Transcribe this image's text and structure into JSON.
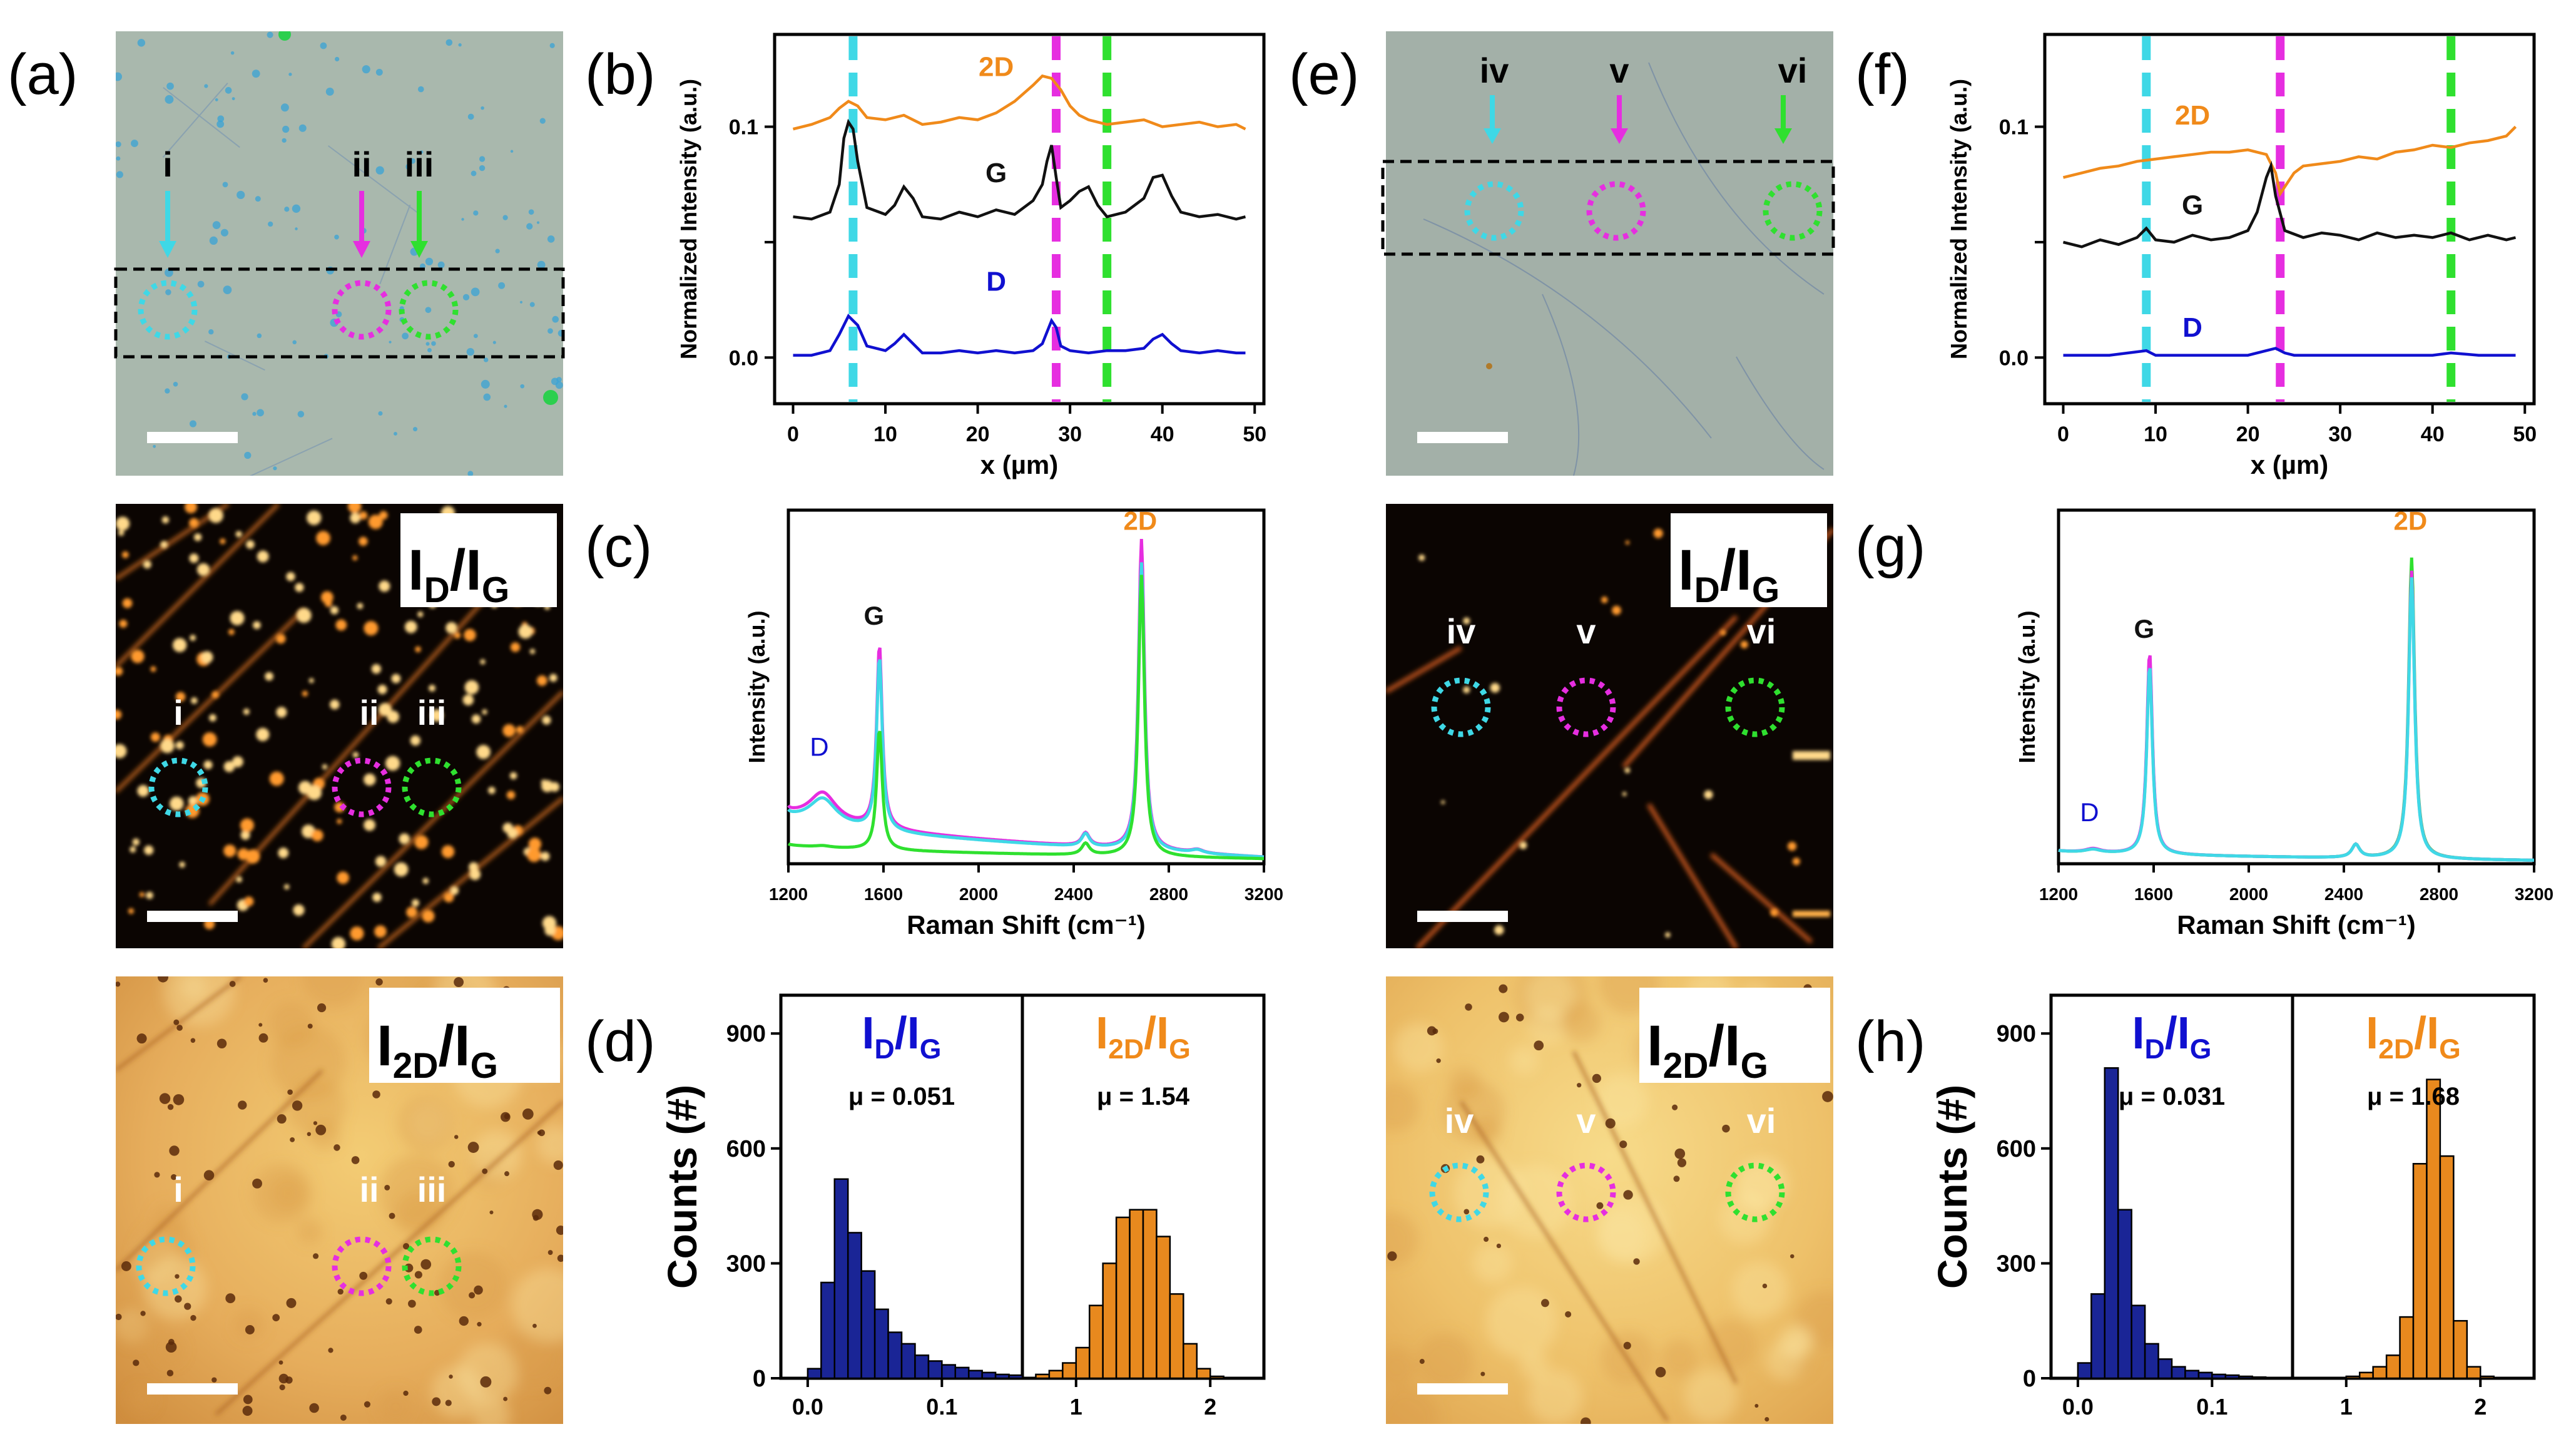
{
  "figure": {
    "panels": {
      "a": {
        "letter": "(a)",
        "points": [
          "i",
          "ii",
          "iii"
        ]
      },
      "e": {
        "letter": "(e)",
        "points": [
          "iv",
          "v",
          "vi"
        ]
      },
      "map_labels": {
        "id_ig": {
          "main": "I",
          "sub": "D",
          "sep": "/I",
          "sub2": "G"
        },
        "i2d_ig": {
          "main": "I",
          "sub": "2D",
          "sep": "/I",
          "sub2": "G"
        }
      }
    },
    "colors": {
      "cyan": "#3fd8e6",
      "magenta": "#e62ee0",
      "green": "#2fe02f",
      "orange": "#f08a1a",
      "black": "#111111",
      "blue": "#1010d0",
      "hist_blue": "#1a2596",
      "hist_orange": "#e8891e"
    }
  },
  "chart_data": [
    {
      "id": "b",
      "letter": "(b)",
      "type": "line",
      "xlabel": "x (µm)",
      "ylabel": "Normalized Intensity (a.u.)",
      "xlim": [
        -2,
        51
      ],
      "ylim": [
        -0.02,
        0.14
      ],
      "xticks": [
        0,
        10,
        20,
        30,
        40,
        50
      ],
      "yticks": [
        0.0,
        0.1
      ],
      "ytick_labels": [
        "0.0",
        "0.1"
      ],
      "vlines": [
        {
          "x": 6.5,
          "color": "cyan"
        },
        {
          "x": 28.5,
          "color": "magenta"
        },
        {
          "x": 34,
          "color": "green"
        }
      ],
      "series": [
        {
          "name": "2D",
          "color": "orange",
          "label_at": [
            22,
            0.122
          ],
          "x": [
            0,
            2,
            4,
            5,
            6,
            7,
            8,
            10,
            12,
            14,
            16,
            18,
            20,
            22,
            24,
            26,
            27,
            28,
            29,
            30,
            31,
            32,
            34,
            36,
            38,
            40,
            42,
            44,
            46,
            48,
            49
          ],
          "y": [
            0.099,
            0.101,
            0.104,
            0.108,
            0.111,
            0.109,
            0.104,
            0.103,
            0.105,
            0.101,
            0.102,
            0.104,
            0.103,
            0.106,
            0.111,
            0.118,
            0.122,
            0.121,
            0.116,
            0.109,
            0.105,
            0.103,
            0.101,
            0.102,
            0.103,
            0.1,
            0.101,
            0.102,
            0.1,
            0.101,
            0.099
          ]
        },
        {
          "name": "G",
          "color": "black",
          "label_at": [
            22,
            0.076
          ],
          "x": [
            0,
            2,
            4,
            5,
            5.5,
            6,
            6.5,
            7,
            8,
            10,
            11,
            12,
            13,
            14,
            16,
            18,
            20,
            22,
            24,
            26,
            27,
            27.5,
            28,
            28.5,
            29,
            30,
            31,
            32,
            33,
            34,
            36,
            38,
            39,
            40,
            41,
            42,
            44,
            46,
            48,
            49
          ],
          "y": [
            0.061,
            0.06,
            0.063,
            0.075,
            0.095,
            0.102,
            0.099,
            0.085,
            0.065,
            0.062,
            0.066,
            0.074,
            0.069,
            0.061,
            0.06,
            0.063,
            0.061,
            0.064,
            0.062,
            0.068,
            0.075,
            0.085,
            0.092,
            0.078,
            0.065,
            0.068,
            0.072,
            0.074,
            0.066,
            0.061,
            0.063,
            0.069,
            0.078,
            0.079,
            0.07,
            0.063,
            0.061,
            0.062,
            0.06,
            0.061
          ]
        },
        {
          "name": "D",
          "color": "blue",
          "label_at": [
            22,
            0.029
          ],
          "x": [
            0,
            2,
            4,
            5,
            6,
            7,
            8,
            10,
            11,
            12,
            13,
            14,
            16,
            18,
            20,
            22,
            24,
            26,
            27,
            28,
            28.5,
            29,
            30,
            32,
            34,
            36,
            38,
            39,
            40,
            41,
            42,
            44,
            46,
            48,
            49
          ],
          "y": [
            0.001,
            0.001,
            0.003,
            0.01,
            0.018,
            0.014,
            0.005,
            0.003,
            0.006,
            0.01,
            0.006,
            0.002,
            0.002,
            0.003,
            0.002,
            0.003,
            0.002,
            0.003,
            0.006,
            0.016,
            0.013,
            0.005,
            0.003,
            0.002,
            0.003,
            0.003,
            0.004,
            0.008,
            0.01,
            0.006,
            0.003,
            0.002,
            0.003,
            0.002,
            0.002
          ]
        }
      ]
    },
    {
      "id": "f",
      "letter": "(f)",
      "type": "line",
      "xlabel": "x (µm)",
      "ylabel": "Normalized Intensity (a.u.)",
      "xlim": [
        -2,
        51
      ],
      "ylim": [
        -0.02,
        0.14
      ],
      "xticks": [
        0,
        10,
        20,
        30,
        40,
        50
      ],
      "yticks": [
        0.0,
        0.1
      ],
      "ytick_labels": [
        "0.0",
        "0.1"
      ],
      "vlines": [
        {
          "x": 9,
          "color": "cyan"
        },
        {
          "x": 23.5,
          "color": "magenta"
        },
        {
          "x": 42,
          "color": "green"
        }
      ],
      "series": [
        {
          "name": "2D",
          "color": "orange",
          "label_at": [
            14,
            0.101
          ],
          "x": [
            0,
            2,
            4,
            6,
            8,
            10,
            12,
            14,
            16,
            18,
            20,
            22,
            23,
            23.5,
            24,
            25,
            26,
            28,
            30,
            32,
            34,
            36,
            38,
            40,
            42,
            44,
            46,
            48,
            49
          ],
          "y": [
            0.078,
            0.08,
            0.082,
            0.083,
            0.085,
            0.086,
            0.087,
            0.088,
            0.089,
            0.089,
            0.09,
            0.088,
            0.08,
            0.071,
            0.074,
            0.08,
            0.083,
            0.084,
            0.085,
            0.087,
            0.086,
            0.089,
            0.09,
            0.092,
            0.091,
            0.093,
            0.094,
            0.096,
            0.1
          ]
        },
        {
          "name": "G",
          "color": "black",
          "label_at": [
            14,
            0.062
          ],
          "x": [
            0,
            2,
            4,
            6,
            8,
            9,
            10,
            12,
            14,
            16,
            18,
            20,
            21,
            22,
            22.5,
            23,
            24,
            26,
            28,
            30,
            32,
            34,
            36,
            38,
            40,
            42,
            44,
            46,
            48,
            49
          ],
          "y": [
            0.05,
            0.048,
            0.051,
            0.049,
            0.052,
            0.056,
            0.051,
            0.05,
            0.053,
            0.051,
            0.052,
            0.055,
            0.063,
            0.078,
            0.083,
            0.07,
            0.055,
            0.052,
            0.054,
            0.053,
            0.051,
            0.054,
            0.052,
            0.053,
            0.052,
            0.054,
            0.051,
            0.053,
            0.051,
            0.052
          ]
        },
        {
          "name": "D",
          "color": "blue",
          "label_at": [
            14,
            0.009
          ],
          "x": [
            0,
            5,
            9,
            10,
            15,
            20,
            23,
            24,
            25,
            30,
            35,
            40,
            42,
            45,
            49
          ],
          "y": [
            0.001,
            0.001,
            0.003,
            0.001,
            0.001,
            0.001,
            0.004,
            0.002,
            0.001,
            0.001,
            0.001,
            0.001,
            0.002,
            0.001,
            0.001
          ]
        }
      ]
    },
    {
      "id": "c",
      "letter": "(c)",
      "type": "line",
      "xlabel": "Raman Shift (cm⁻¹)",
      "ylabel": "Intensity (a.u.)",
      "xlim": [
        1200,
        3200
      ],
      "ylim": [
        0,
        1.08
      ],
      "xticks": [
        1200,
        1600,
        2000,
        2400,
        2800,
        3200
      ],
      "peak_labels": [
        {
          "text": "D",
          "color": "blue",
          "at": [
            1330,
            0.33
          ]
        },
        {
          "text": "G",
          "color": "black",
          "at": [
            1560,
            0.73
          ]
        },
        {
          "text": "2D",
          "color": "orange",
          "at": [
            2680,
            1.02
          ]
        }
      ],
      "spectra": [
        {
          "color": "magenta",
          "base_left": 0.16,
          "base_right": 0.02,
          "peaks": [
            [
              1345,
              0.09,
              70
            ],
            [
              1583,
              0.56,
              14
            ],
            [
              2450,
              0.04,
              20
            ],
            [
              2685,
              0.95,
              15
            ],
            [
              2920,
              0.01,
              30
            ]
          ]
        },
        {
          "color": "cyan",
          "base_left": 0.15,
          "base_right": 0.02,
          "peaks": [
            [
              1345,
              0.08,
              70
            ],
            [
              1583,
              0.53,
              14
            ],
            [
              2450,
              0.04,
              20
            ],
            [
              2685,
              0.88,
              15
            ],
            [
              2920,
              0.01,
              30
            ]
          ]
        },
        {
          "color": "green",
          "base_left": 0.06,
          "base_right": 0.015,
          "peaks": [
            [
              1345,
              0.005,
              40
            ],
            [
              1583,
              0.37,
              14
            ],
            [
              2450,
              0.035,
              20
            ],
            [
              2685,
              0.86,
              15
            ]
          ]
        }
      ]
    },
    {
      "id": "g",
      "letter": "(g)",
      "type": "line",
      "xlabel": "Raman Shift (cm⁻¹)",
      "ylabel": "Intensity (a.u.)",
      "xlim": [
        1200,
        3200
      ],
      "ylim": [
        0,
        1.08
      ],
      "xticks": [
        1200,
        1600,
        2000,
        2400,
        2800,
        3200
      ],
      "peak_labels": [
        {
          "text": "D",
          "color": "blue",
          "at": [
            1330,
            0.13
          ]
        },
        {
          "text": "G",
          "color": "black",
          "at": [
            1560,
            0.69
          ]
        },
        {
          "text": "2D",
          "color": "orange",
          "at": [
            2680,
            1.02
          ]
        }
      ],
      "spectra": [
        {
          "color": "green",
          "base_left": 0.04,
          "base_right": 0.01,
          "peaks": [
            [
              1345,
              0.01,
              40
            ],
            [
              1583,
              0.6,
              14
            ],
            [
              2450,
              0.04,
              20
            ],
            [
              2685,
              0.92,
              15
            ]
          ]
        },
        {
          "color": "magenta",
          "base_left": 0.04,
          "base_right": 0.01,
          "peaks": [
            [
              1345,
              0.012,
              40
            ],
            [
              1583,
              0.62,
              14
            ],
            [
              2450,
              0.04,
              20
            ],
            [
              2685,
              0.88,
              15
            ]
          ]
        },
        {
          "color": "cyan",
          "base_left": 0.04,
          "base_right": 0.01,
          "peaks": [
            [
              1345,
              0.01,
              40
            ],
            [
              1583,
              0.58,
              14
            ],
            [
              2450,
              0.04,
              20
            ],
            [
              2685,
              0.86,
              15
            ]
          ]
        }
      ]
    },
    {
      "id": "d",
      "letter": "(d)",
      "type": "bar",
      "ylabel": "Counts (#)",
      "ylim": [
        0,
        1000
      ],
      "yticks": [
        0,
        300,
        600,
        900
      ],
      "left": {
        "label": {
          "main": "I",
          "sub": "D",
          "sep": "/I",
          "sub2": "G"
        },
        "mu": "μ = 0.051",
        "color": "hist_blue",
        "xlim": [
          -0.02,
          0.16
        ],
        "xticks": [
          0,
          0.1
        ],
        "xtick_labels": [
          "0.0",
          "0.1"
        ],
        "bin_width": 0.01,
        "bin_starts": [
          0.0,
          0.01,
          0.02,
          0.03,
          0.04,
          0.05,
          0.06,
          0.07,
          0.08,
          0.09,
          0.1,
          0.11,
          0.12,
          0.13,
          0.14,
          0.15
        ],
        "counts": [
          25,
          250,
          520,
          380,
          280,
          180,
          120,
          90,
          60,
          45,
          35,
          28,
          20,
          15,
          10,
          8
        ]
      },
      "right": {
        "label": {
          "main": "I",
          "sub": "2D",
          "sep": "/I",
          "sub2": "G"
        },
        "mu": "μ = 1.54",
        "color": "hist_orange",
        "xlim": [
          0.6,
          2.4
        ],
        "xticks": [
          1,
          2
        ],
        "xtick_labels": [
          "1",
          "2"
        ],
        "bin_width": 0.1,
        "bin_starts": [
          0.7,
          0.8,
          0.9,
          1.0,
          1.1,
          1.2,
          1.3,
          1.4,
          1.5,
          1.6,
          1.7,
          1.8,
          1.9,
          2.0
        ],
        "counts": [
          10,
          20,
          40,
          80,
          190,
          300,
          420,
          440,
          440,
          370,
          220,
          90,
          25,
          5
        ]
      }
    },
    {
      "id": "h",
      "letter": "(h)",
      "type": "bar",
      "ylabel": "Counts (#)",
      "ylim": [
        0,
        1000
      ],
      "yticks": [
        0,
        300,
        600,
        900
      ],
      "left": {
        "label": {
          "main": "I",
          "sub": "D",
          "sep": "/I",
          "sub2": "G"
        },
        "mu": "μ = 0.031",
        "color": "hist_blue",
        "xlim": [
          -0.02,
          0.16
        ],
        "xticks": [
          0,
          0.1
        ],
        "xtick_labels": [
          "0.0",
          "0.1"
        ],
        "bin_width": 0.01,
        "bin_starts": [
          0.0,
          0.01,
          0.02,
          0.03,
          0.04,
          0.05,
          0.06,
          0.07,
          0.08,
          0.09,
          0.1,
          0.11,
          0.12,
          0.13
        ],
        "counts": [
          40,
          220,
          810,
          440,
          190,
          90,
          50,
          30,
          20,
          15,
          10,
          8,
          5,
          3
        ]
      },
      "right": {
        "label": {
          "main": "I",
          "sub": "2D",
          "sep": "/I",
          "sub2": "G"
        },
        "mu": "μ = 1.68",
        "color": "hist_orange",
        "xlim": [
          0.6,
          2.4
        ],
        "xticks": [
          1,
          2
        ],
        "xtick_labels": [
          "1",
          "2"
        ],
        "bin_width": 0.1,
        "bin_starts": [
          1.0,
          1.1,
          1.2,
          1.3,
          1.4,
          1.5,
          1.6,
          1.7,
          1.8,
          1.9,
          2.0
        ],
        "counts": [
          5,
          15,
          30,
          60,
          160,
          560,
          780,
          580,
          150,
          30,
          5
        ]
      }
    }
  ]
}
